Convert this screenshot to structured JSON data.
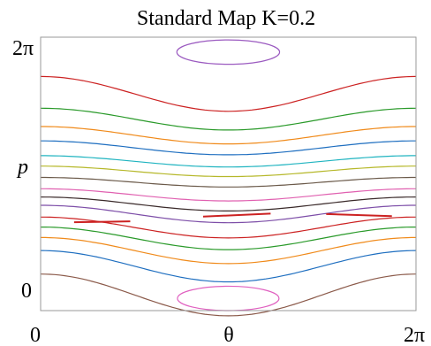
{
  "chart_data": {
    "type": "line",
    "title": "Standard Map K=0.2",
    "xlabel": "θ",
    "ylabel": "p",
    "xlim": [
      0,
      6.2832
    ],
    "ylim": [
      0,
      6.2832
    ],
    "x_ticks": [
      {
        "value": 0,
        "label": "0"
      },
      {
        "value": 6.2832,
        "label": "2π"
      }
    ],
    "y_ticks": [
      {
        "value": 0,
        "label": "0"
      },
      {
        "value": 6.2832,
        "label": "2π"
      }
    ],
    "grid": false,
    "series": [
      {
        "color": "#8b5a4a",
        "kind": "curve",
        "p0": 0.36,
        "amp": 0.48
      },
      {
        "color": "#1f6fc0",
        "kind": "curve",
        "p0": 1.02,
        "amp": 0.36
      },
      {
        "color": "#f08a1a",
        "kind": "curve",
        "p0": 1.38,
        "amp": 0.3
      },
      {
        "color": "#2a9a2a",
        "kind": "curve",
        "p0": 1.66,
        "amp": 0.26
      },
      {
        "color": "#cc2222",
        "kind": "curve",
        "p0": 1.91,
        "amp": 0.24
      },
      {
        "color": "#7d4ea8",
        "kind": "curve",
        "p0": 2.22,
        "amp": 0.2
      },
      {
        "color": "#3a2a2a",
        "kind": "curve",
        "p0": 2.45,
        "amp": 0.16
      },
      {
        "color": "#e060b0",
        "kind": "curve",
        "p0": 2.66,
        "amp": 0.14
      },
      {
        "color": "#6b5a4a",
        "kind": "curve",
        "p0": 2.95,
        "amp": 0.11
      },
      {
        "color": "#b6b82a",
        "kind": "curve",
        "p0": 3.2,
        "amp": 0.12
      },
      {
        "color": "#20b4c0",
        "kind": "curve",
        "p0": 3.43,
        "amp": 0.13
      },
      {
        "color": "#1f6fc0",
        "kind": "curve",
        "p0": 3.74,
        "amp": 0.16
      },
      {
        "color": "#f08a1a",
        "kind": "curve",
        "p0": 4.03,
        "amp": 0.2
      },
      {
        "color": "#2a9a2a",
        "kind": "curve",
        "p0": 4.4,
        "amp": 0.25
      },
      {
        "color": "#cc2222",
        "kind": "curve",
        "p0": 4.98,
        "amp": 0.4
      },
      {
        "color": "#cc2222",
        "kind": "segment",
        "x": [
          0.56,
          1.5
        ],
        "p": [
          2.03,
          2.05
        ]
      },
      {
        "color": "#cc2222",
        "kind": "segment",
        "x": [
          2.72,
          3.85
        ],
        "p": [
          2.16,
          2.23
        ]
      },
      {
        "color": "#cc2222",
        "kind": "segment",
        "x": [
          4.78,
          5.88
        ],
        "p": [
          2.22,
          2.17
        ]
      },
      {
        "color": "#9b5ac0",
        "kind": "ellipse",
        "cx": 3.14,
        "cy": 5.94,
        "rx": 0.86,
        "ry": 0.28
      },
      {
        "color": "#e060c0",
        "kind": "ellipse",
        "cx": 3.14,
        "cy": 0.28,
        "rx": 0.85,
        "ry": 0.28
      }
    ]
  }
}
